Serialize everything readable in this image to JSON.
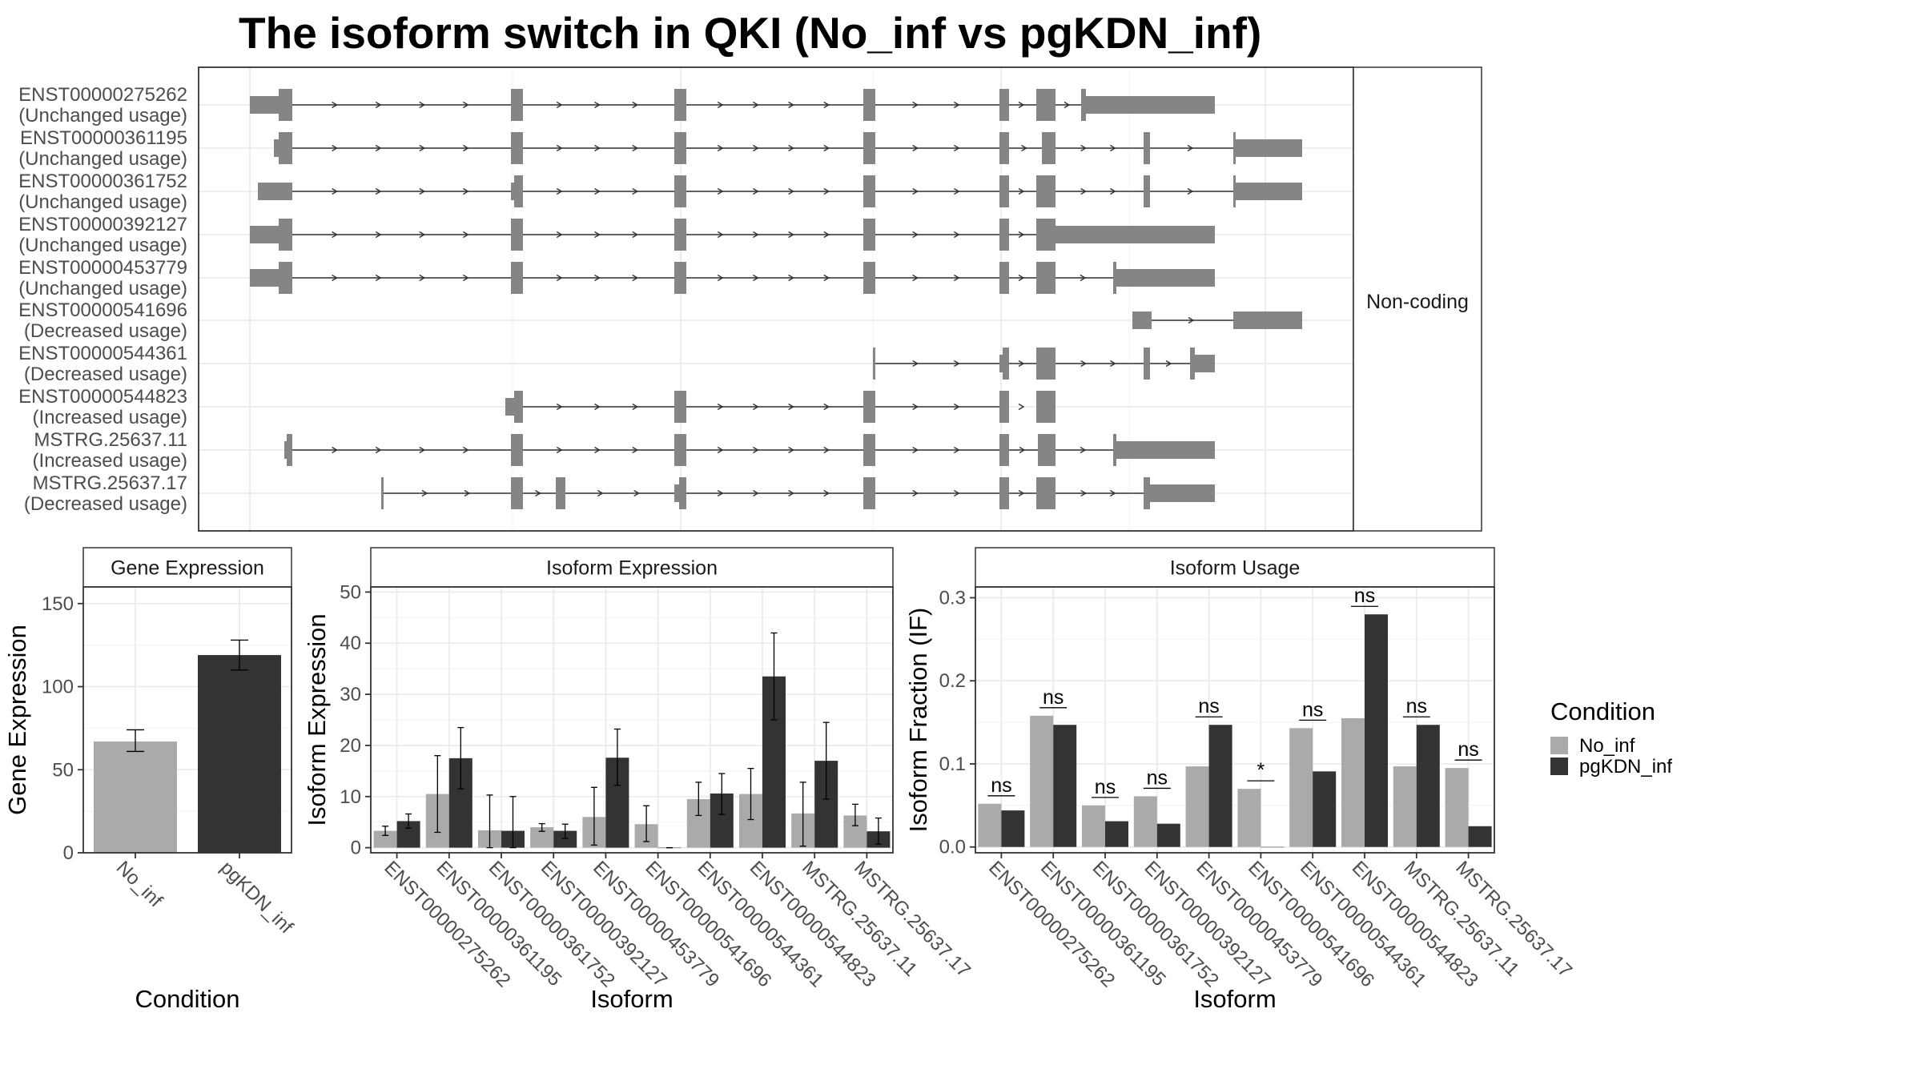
{
  "title": "The isoform switch in QKI (No_inf vs pgKDN_inf)",
  "colors": {
    "no_inf": "#aaaaaa",
    "pgkdn_inf": "#333333",
    "exon": "#858585"
  },
  "chart_data": [
    {
      "type": "gene-structure",
      "strip_label": "Non-coding",
      "transcripts": [
        {
          "id": "ENST00000275262",
          "usage": "(Unchanged usage)"
        },
        {
          "id": "ENST00000361195",
          "usage": "(Unchanged usage)"
        },
        {
          "id": "ENST00000361752",
          "usage": "(Unchanged usage)"
        },
        {
          "id": "ENST00000392127",
          "usage": "(Unchanged usage)"
        },
        {
          "id": "ENST00000453779",
          "usage": "(Unchanged usage)"
        },
        {
          "id": "ENST00000541696",
          "usage": "(Decreased usage)"
        },
        {
          "id": "ENST00000544361",
          "usage": "(Decreased usage)"
        },
        {
          "id": "ENST00000544823",
          "usage": "(Increased usage)"
        },
        {
          "id": "MSTRG.25637.11",
          "usage": "(Increased usage)"
        },
        {
          "id": "MSTRG.25637.17",
          "usage": "(Decreased usage)"
        }
      ]
    },
    {
      "type": "bar",
      "strip_label": "Gene Expression",
      "xlabel": "Condition",
      "ylabel": "Gene Expression",
      "ylim": [
        0,
        160
      ],
      "yticks": [
        0,
        50,
        100,
        150
      ],
      "categories": [
        "No_inf",
        "pgKDN_inf"
      ],
      "values": [
        67,
        119
      ],
      "err_low": [
        61,
        110
      ],
      "err_high": [
        74,
        128
      ]
    },
    {
      "type": "bar",
      "strip_label": "Isoform Expression",
      "xlabel": "Isoform",
      "ylabel": "Isoform Expression",
      "ylim": [
        -1,
        51
      ],
      "yticks": [
        0,
        10,
        20,
        30,
        40,
        50
      ],
      "categories": [
        "ENST00000275262",
        "ENST00000361195",
        "ENST00000361752",
        "ENST00000392127",
        "ENST00000453779",
        "ENST00000541696",
        "ENST00000544361",
        "ENST00000544823",
        "MSTRG.25637.11",
        "MSTRG.25637.17"
      ],
      "series": [
        {
          "name": "No_inf",
          "values": [
            3.3,
            10.5,
            3.4,
            4.0,
            6.0,
            4.6,
            9.5,
            10.5,
            6.7,
            6.3
          ],
          "err_low": [
            2.4,
            3.0,
            0.0,
            3.2,
            0.5,
            1.2,
            6.3,
            5.5,
            0.3,
            4.3
          ],
          "err_high": [
            4.2,
            18.0,
            10.3,
            4.7,
            11.8,
            8.2,
            12.8,
            15.5,
            12.8,
            8.5
          ]
        },
        {
          "name": "pgKDN_inf",
          "values": [
            5.2,
            17.5,
            3.3,
            3.3,
            17.6,
            0.0,
            10.6,
            33.5,
            17.0,
            3.2
          ],
          "err_low": [
            3.8,
            11.5,
            0.0,
            1.8,
            12.2,
            0.0,
            6.5,
            25.0,
            9.5,
            0.7
          ],
          "err_high": [
            6.6,
            23.5,
            10.0,
            4.6,
            23.2,
            0.0,
            14.5,
            42.0,
            24.5,
            5.8
          ]
        }
      ]
    },
    {
      "type": "bar",
      "strip_label": "Isoform Usage",
      "xlabel": "Isoform",
      "ylabel": "Isoform Fraction (IF)",
      "ylim": [
        -0.007,
        0.313
      ],
      "yticks": [
        0.0,
        0.1,
        0.2,
        0.3
      ],
      "ytick_labels": [
        "0.0",
        "0.1",
        "0.2",
        "0.3"
      ],
      "categories": [
        "ENST00000275262",
        "ENST00000361195",
        "ENST00000361752",
        "ENST00000392127",
        "ENST00000453779",
        "ENST00000541696",
        "ENST00000544361",
        "ENST00000544823",
        "MSTRG.25637.11",
        "MSTRG.25637.17"
      ],
      "series": [
        {
          "name": "No_inf",
          "values": [
            0.052,
            0.158,
            0.05,
            0.061,
            0.097,
            0.07,
            0.143,
            0.155,
            0.097,
            0.095
          ]
        },
        {
          "name": "pgKDN_inf",
          "values": [
            0.044,
            0.147,
            0.031,
            0.028,
            0.147,
            0.0,
            0.091,
            0.28,
            0.147,
            0.025
          ]
        }
      ],
      "significance": [
        "ns",
        "ns",
        "ns",
        "ns",
        "ns",
        "*",
        "ns",
        "ns",
        "ns",
        "ns"
      ]
    }
  ],
  "legend": {
    "title": "Condition",
    "items": [
      {
        "label": "No_inf",
        "color": "#aaaaaa"
      },
      {
        "label": "pgKDN_inf",
        "color": "#333333"
      }
    ]
  }
}
